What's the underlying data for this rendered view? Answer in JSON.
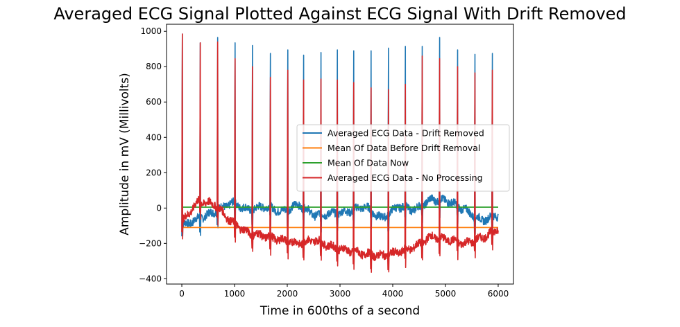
{
  "chart_data": {
    "type": "line",
    "title": "Averaged ECG Signal Plotted Against ECG Signal With Drift Removed",
    "xlabel": "Time in 600ths of a second",
    "ylabel": "Amplitude in mV (Millivolts)",
    "xlim": [
      -290,
      6290
    ],
    "ylim": [
      -430,
      1040
    ],
    "x_ticks": [
      0,
      1000,
      2000,
      3000,
      4000,
      5000,
      6000
    ],
    "y_ticks": [
      -400,
      -200,
      0,
      200,
      400,
      600,
      800,
      1000
    ],
    "grid": false,
    "legend_position": "center-right",
    "beat_x": [
      10,
      350,
      680,
      1010,
      1340,
      1680,
      2010,
      2310,
      2640,
      2950,
      3260,
      3590,
      3920,
      4240,
      4560,
      4890,
      5230,
      5560,
      5890
    ],
    "series": [
      {
        "name": "Averaged ECG Data - Drift Removed",
        "color": "#1f77b4",
        "peaks": [
          985,
          935,
          965,
          935,
          920,
          875,
          895,
          865,
          880,
          895,
          890,
          890,
          905,
          915,
          915,
          965,
          895,
          870,
          875
        ],
        "baseline": [
          -100,
          -60,
          -20,
          30,
          -10,
          10,
          -20,
          20,
          -40,
          -30,
          -20,
          10,
          -60,
          10,
          -10,
          50,
          40,
          -10,
          -70,
          -40
        ],
        "range": [
          -160,
          70
        ]
      },
      {
        "name": "Mean Of Data Before Drift Removal",
        "color": "#ff7f0e",
        "x": [
          0,
          6000
        ],
        "values": [
          -110,
          -110
        ]
      },
      {
        "name": "Mean Of Data Now",
        "color": "#2ca02c",
        "x": [
          0,
          6000
        ],
        "values": [
          5,
          5
        ]
      },
      {
        "name": "Averaged ECG Data - No Processing",
        "color": "#d62728",
        "peaks": [
          985,
          935,
          940,
          845,
          800,
          740,
          780,
          725,
          730,
          725,
          710,
          680,
          670,
          700,
          860,
          845,
          800,
          765,
          780
        ],
        "baseline": [
          -80,
          40,
          20,
          -80,
          -140,
          -160,
          -180,
          -200,
          -180,
          -220,
          -240,
          -260,
          -270,
          -250,
          -220,
          -160,
          -180,
          -200,
          -170,
          -120
        ],
        "range": [
          -375,
          80
        ]
      }
    ]
  }
}
